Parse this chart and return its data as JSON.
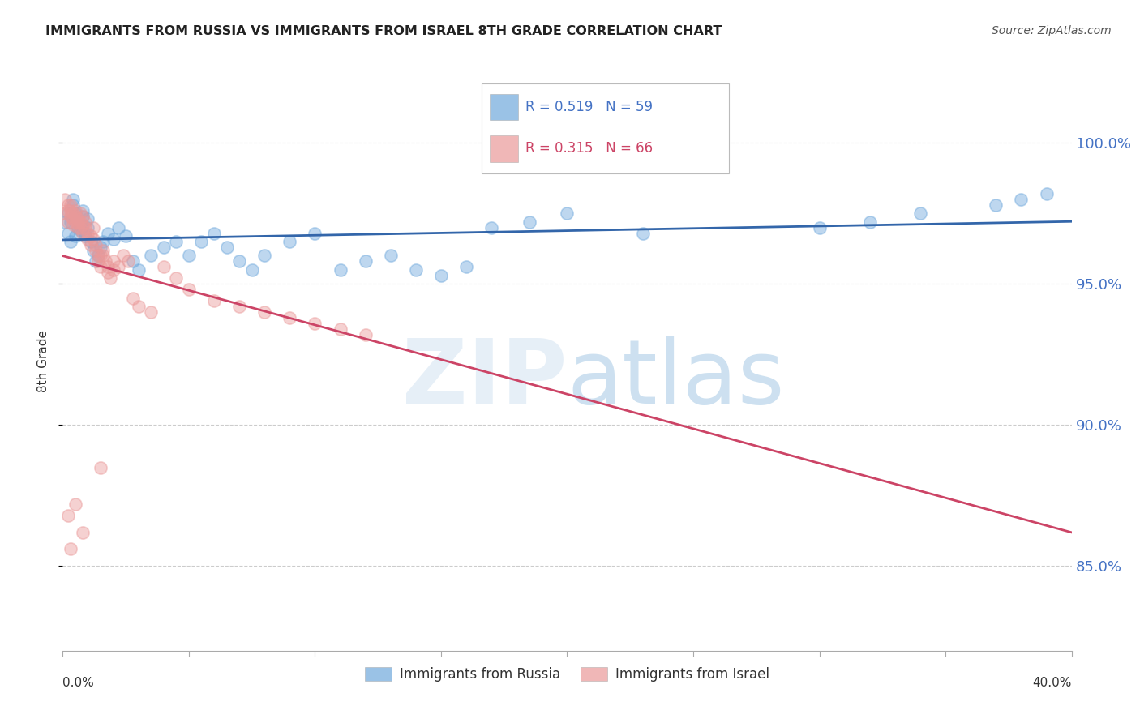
{
  "title": "IMMIGRANTS FROM RUSSIA VS IMMIGRANTS FROM ISRAEL 8TH GRADE CORRELATION CHART",
  "source": "Source: ZipAtlas.com",
  "ylabel": "8th Grade",
  "yaxis_ticks": [
    "100.0%",
    "95.0%",
    "90.0%",
    "85.0%"
  ],
  "yaxis_tick_vals": [
    1.0,
    0.95,
    0.9,
    0.85
  ],
  "xlim": [
    0.0,
    0.4
  ],
  "ylim": [
    0.82,
    1.025
  ],
  "russia_R": 0.519,
  "russia_N": 59,
  "israel_R": 0.315,
  "israel_N": 66,
  "russia_color": "#6fa8dc",
  "israel_color": "#ea9999",
  "russia_line_color": "#3366aa",
  "israel_line_color": "#cc4466",
  "background_color": "#ffffff",
  "grid_color": "#cccccc",
  "russia_x": [
    0.001,
    0.002,
    0.002,
    0.003,
    0.003,
    0.004,
    0.004,
    0.005,
    0.005,
    0.006,
    0.006,
    0.007,
    0.007,
    0.008,
    0.008,
    0.009,
    0.009,
    0.01,
    0.01,
    0.011,
    0.012,
    0.013,
    0.014,
    0.015,
    0.016,
    0.018,
    0.02,
    0.022,
    0.025,
    0.028,
    0.03,
    0.035,
    0.04,
    0.045,
    0.05,
    0.055,
    0.06,
    0.065,
    0.07,
    0.075,
    0.08,
    0.09,
    0.1,
    0.11,
    0.12,
    0.13,
    0.14,
    0.15,
    0.16,
    0.17,
    0.185,
    0.2,
    0.23,
    0.3,
    0.32,
    0.34,
    0.37,
    0.38,
    0.39
  ],
  "russia_y": [
    0.972,
    0.975,
    0.968,
    0.972,
    0.965,
    0.978,
    0.98,
    0.975,
    0.967,
    0.97,
    0.973,
    0.969,
    0.971,
    0.974,
    0.976,
    0.968,
    0.967,
    0.97,
    0.973,
    0.965,
    0.962,
    0.958,
    0.96,
    0.963,
    0.965,
    0.968,
    0.966,
    0.97,
    0.967,
    0.958,
    0.955,
    0.96,
    0.963,
    0.965,
    0.96,
    0.965,
    0.968,
    0.963,
    0.958,
    0.955,
    0.96,
    0.965,
    0.968,
    0.955,
    0.958,
    0.96,
    0.955,
    0.953,
    0.956,
    0.97,
    0.972,
    0.975,
    0.968,
    0.97,
    0.972,
    0.975,
    0.978,
    0.98,
    0.982
  ],
  "israel_x": [
    0.001,
    0.001,
    0.002,
    0.002,
    0.002,
    0.003,
    0.003,
    0.003,
    0.004,
    0.004,
    0.004,
    0.005,
    0.005,
    0.005,
    0.006,
    0.006,
    0.006,
    0.007,
    0.007,
    0.007,
    0.008,
    0.008,
    0.008,
    0.009,
    0.009,
    0.01,
    0.01,
    0.011,
    0.011,
    0.012,
    0.012,
    0.013,
    0.013,
    0.014,
    0.014,
    0.015,
    0.015,
    0.016,
    0.016,
    0.017,
    0.018,
    0.018,
    0.019,
    0.02,
    0.02,
    0.022,
    0.024,
    0.026,
    0.028,
    0.03,
    0.035,
    0.04,
    0.045,
    0.05,
    0.06,
    0.07,
    0.08,
    0.09,
    0.1,
    0.11,
    0.12,
    0.002,
    0.003,
    0.005,
    0.008,
    0.015
  ],
  "israel_y": [
    0.975,
    0.98,
    0.976,
    0.978,
    0.972,
    0.974,
    0.976,
    0.978,
    0.971,
    0.973,
    0.975,
    0.972,
    0.974,
    0.976,
    0.972,
    0.97,
    0.973,
    0.975,
    0.972,
    0.97,
    0.968,
    0.971,
    0.974,
    0.972,
    0.97,
    0.968,
    0.966,
    0.964,
    0.967,
    0.97,
    0.966,
    0.964,
    0.962,
    0.96,
    0.958,
    0.956,
    0.96,
    0.962,
    0.96,
    0.958,
    0.956,
    0.954,
    0.952,
    0.955,
    0.958,
    0.956,
    0.96,
    0.958,
    0.945,
    0.942,
    0.94,
    0.956,
    0.952,
    0.948,
    0.944,
    0.942,
    0.94,
    0.938,
    0.936,
    0.934,
    0.932,
    0.868,
    0.856,
    0.872,
    0.862,
    0.885
  ],
  "legend_russia_label": "Immigrants from Russia",
  "legend_israel_label": "Immigrants from Israel"
}
